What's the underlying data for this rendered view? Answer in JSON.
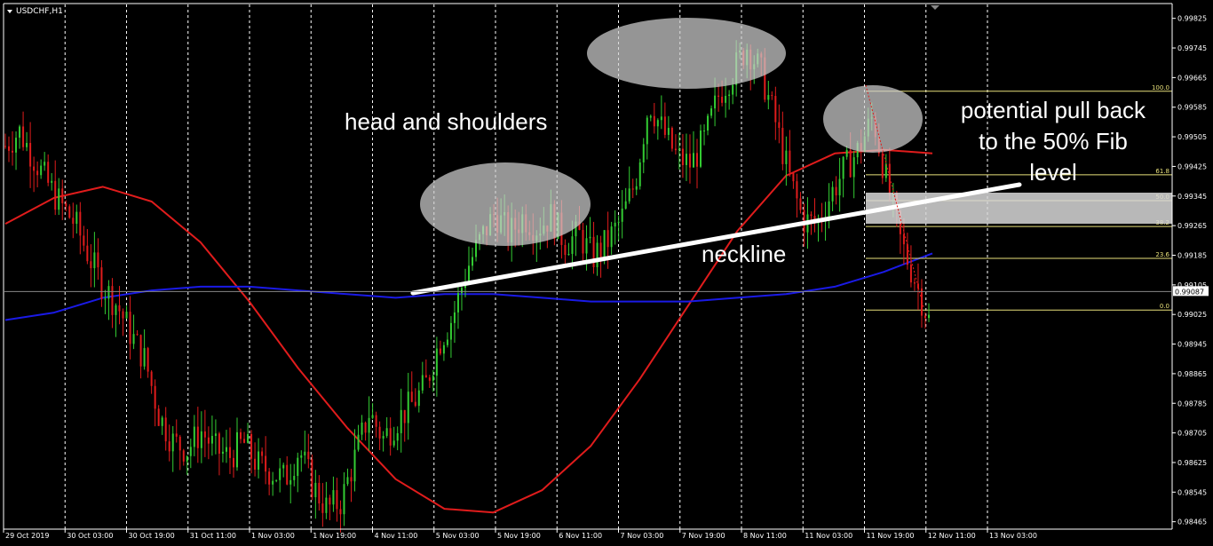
{
  "chart_data": {
    "type": "candlestick",
    "symbol": "USDCHF,H1",
    "current_price": "0.99087",
    "ylim": [
      0.98445,
      0.99865
    ],
    "y_ticks": [
      "0.99825",
      "0.99745",
      "0.99665",
      "0.99585",
      "0.99505",
      "0.99425",
      "0.99345",
      "0.99265",
      "0.99185",
      "0.99105",
      "0.99025",
      "0.98945",
      "0.98865",
      "0.98785",
      "0.98705",
      "0.98625",
      "0.98545",
      "0.98465"
    ],
    "x_ticks": [
      "29 Oct 2019",
      "30 Oct 03:00",
      "30 Oct 19:00",
      "31 Oct 11:00",
      "1 Nov 03:00",
      "1 Nov 19:00",
      "4 Nov 11:00",
      "5 Nov 03:00",
      "5 Nov 19:00",
      "6 Nov 11:00",
      "7 Nov 03:00",
      "7 Nov 19:00",
      "8 Nov 11:00",
      "11 Nov 03:00",
      "11 Nov 19:00",
      "12 Nov 11:00",
      "13 Nov 03:00"
    ],
    "close_path": [
      0.9948,
      0.9952,
      0.9945,
      0.9938,
      0.9932,
      0.9927,
      0.9918,
      0.991,
      0.9905,
      0.9897,
      0.989,
      0.9875,
      0.9868,
      0.9866,
      0.9871,
      0.9866,
      0.9864,
      0.9868,
      0.9862,
      0.986,
      0.9858,
      0.9866,
      0.9856,
      0.985,
      0.9852,
      0.9864,
      0.9876,
      0.9869,
      0.9874,
      0.9878,
      0.9883,
      0.9895,
      0.9902,
      0.9915,
      0.9923,
      0.993,
      0.9924,
      0.9929,
      0.9926,
      0.9929,
      0.9922,
      0.9924,
      0.9918,
      0.9922,
      0.9928,
      0.9938,
      0.996,
      0.9952,
      0.9945,
      0.9943,
      0.995,
      0.9962,
      0.9968,
      0.9975,
      0.9968,
      0.9955,
      0.994,
      0.9928,
      0.9927,
      0.9935,
      0.9942,
      0.9947,
      0.9956,
      0.9938,
      0.9922,
      0.9912,
      0.9901
    ],
    "series": [
      {
        "name": "MA red",
        "color": "#e01c1c",
        "values": [
          0.9927,
          0.9934,
          0.9937,
          0.9933,
          0.9922,
          0.9906,
          0.9888,
          0.9872,
          0.9858,
          0.985,
          0.9849,
          0.9855,
          0.9867,
          0.9885,
          0.9905,
          0.9925,
          0.994,
          0.9946,
          0.9947,
          0.9946
        ]
      },
      {
        "name": "MA blue",
        "color": "#1a1ae6",
        "values": [
          0.9901,
          0.9903,
          0.9907,
          0.9909,
          0.991,
          0.991,
          0.9909,
          0.9908,
          0.9907,
          0.9908,
          0.9908,
          0.9907,
          0.9906,
          0.9906,
          0.9906,
          0.9907,
          0.9908,
          0.991,
          0.9914,
          0.9919
        ]
      }
    ],
    "fibonacci": {
      "high": 0.99628,
      "low": 0.99037,
      "levels": [
        {
          "label": "100.0",
          "ratio": 1.0
        },
        {
          "label": "61.8",
          "ratio": 0.618
        },
        {
          "label": "50.0",
          "ratio": 0.5
        },
        {
          "label": "38.2",
          "ratio": 0.382
        },
        {
          "label": "23.6",
          "ratio": 0.236
        },
        {
          "label": "0.0",
          "ratio": 0.0
        }
      ]
    },
    "annotations": {
      "pattern": "head and shoulders",
      "neckline": "neckline",
      "pullback_line1": "potential pull back",
      "pullback_line2": "to the 50% Fib",
      "pullback_line3": "level"
    },
    "colors": {
      "bull": "#33cc33",
      "bear": "#e01c1c",
      "fib": "#e8e07a",
      "background": "#000000",
      "grid": "#ffffff"
    }
  }
}
